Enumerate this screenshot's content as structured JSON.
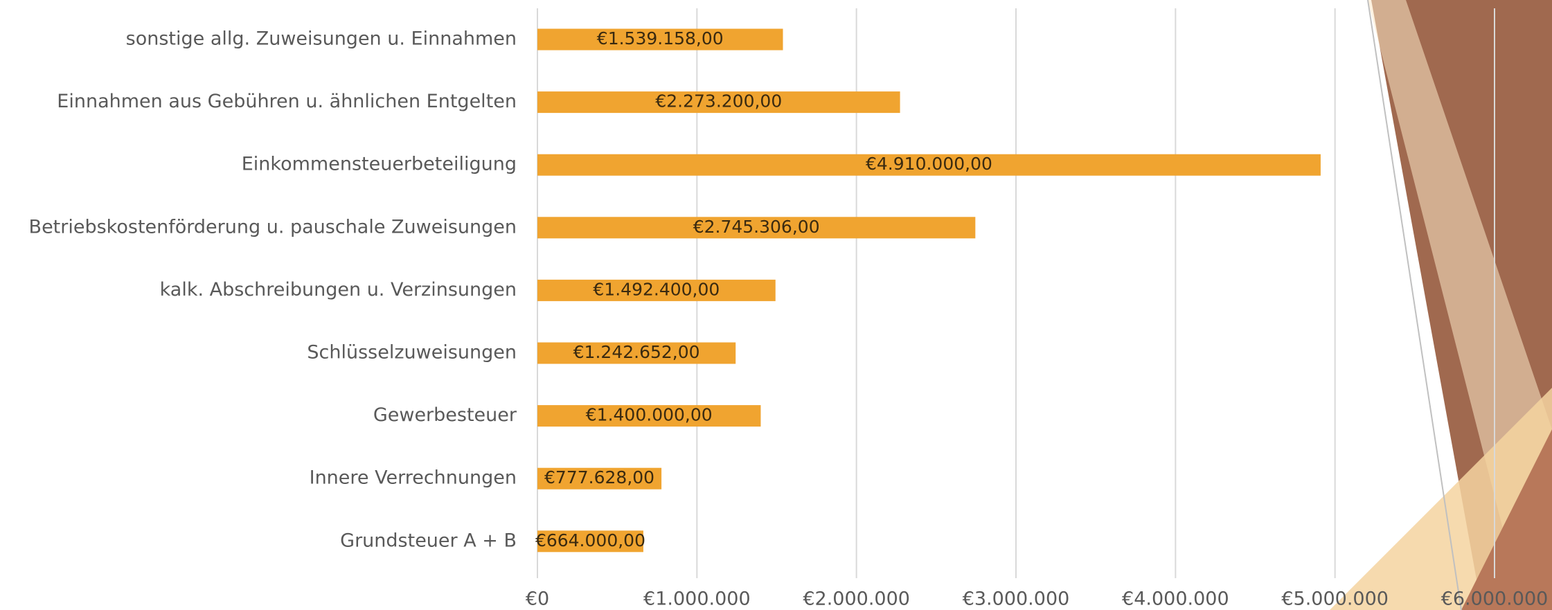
{
  "chart_data": {
    "type": "bar",
    "orientation": "horizontal",
    "categories": [
      "sonstige allg. Zuweisungen u. Einnahmen",
      "Einnahmen aus Gebühren u. ähnlichen Entgelten",
      "Einkommensteuerbeteiligung",
      "Betriebskostenförderung u. pauschale Zuweisungen",
      "kalk. Abschreibungen u. Verzinsungen",
      "Schlüsselzuweisungen",
      "Gewerbesteuer",
      "Innere Verrechnungen",
      "Grundsteuer A + B"
    ],
    "values": [
      1539158,
      2273200,
      4910000,
      2745306,
      1492400,
      1242652,
      1400000,
      777628,
      664000
    ],
    "value_labels": [
      "€1.539.158,00",
      "€2.273.200,00",
      "€4.910.000,00",
      "€2.745.306,00",
      "€1.492.400,00",
      "€1.242.652,00",
      "€1.400.000,00",
      "€777.628,00",
      "€664.000,00"
    ],
    "color": "#f0a430",
    "xlim": [
      0,
      6000000
    ],
    "xticks": [
      {
        "value": 0,
        "label": "€0"
      },
      {
        "value": 1000000,
        "label": "€1.000.000"
      },
      {
        "value": 2000000,
        "label": "€2.000.000"
      },
      {
        "value": 3000000,
        "label": "€3.000.000"
      },
      {
        "value": 4000000,
        "label": "€4.000.000"
      },
      {
        "value": 5000000,
        "label": "€5.000.000"
      },
      {
        "value": 6000000,
        "label": "€6.000.000"
      }
    ],
    "grid": true
  }
}
